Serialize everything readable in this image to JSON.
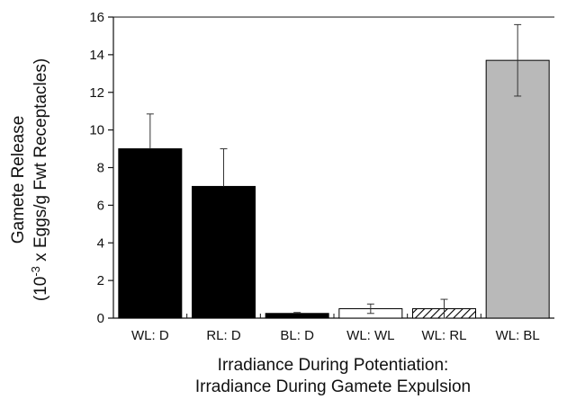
{
  "chart_data": {
    "type": "bar",
    "ylabel_line1": "Gamete Release",
    "ylabel_line2": "(10",
    "ylabel_exponent": "-3",
    "ylabel_line2_rest": " x Eggs/g Fwt Receptacles)",
    "xlabel_line1": "Irradiance During Potentiation:",
    "xlabel_line2": "Irradiance During Gamete Expulsion",
    "ylim": [
      0,
      16
    ],
    "yticks": [
      "0",
      "2",
      "4",
      "6",
      "8",
      "10",
      "12",
      "14",
      "16"
    ],
    "categories": [
      "WL: D",
      "RL: D",
      "BL: D",
      "WL: WL",
      "WL: RL",
      "WL: BL"
    ],
    "values": [
      9.0,
      7.0,
      0.25,
      0.5,
      0.5,
      13.7
    ],
    "errors": [
      1.85,
      2.0,
      0.05,
      0.25,
      0.5,
      1.9
    ],
    "fills": [
      "black",
      "black",
      "black",
      "white",
      "hatched",
      "gray"
    ],
    "colors": {
      "black": "#000000",
      "white": "#ffffff",
      "gray": "#b9b9b9",
      "axis": "#111111"
    }
  }
}
